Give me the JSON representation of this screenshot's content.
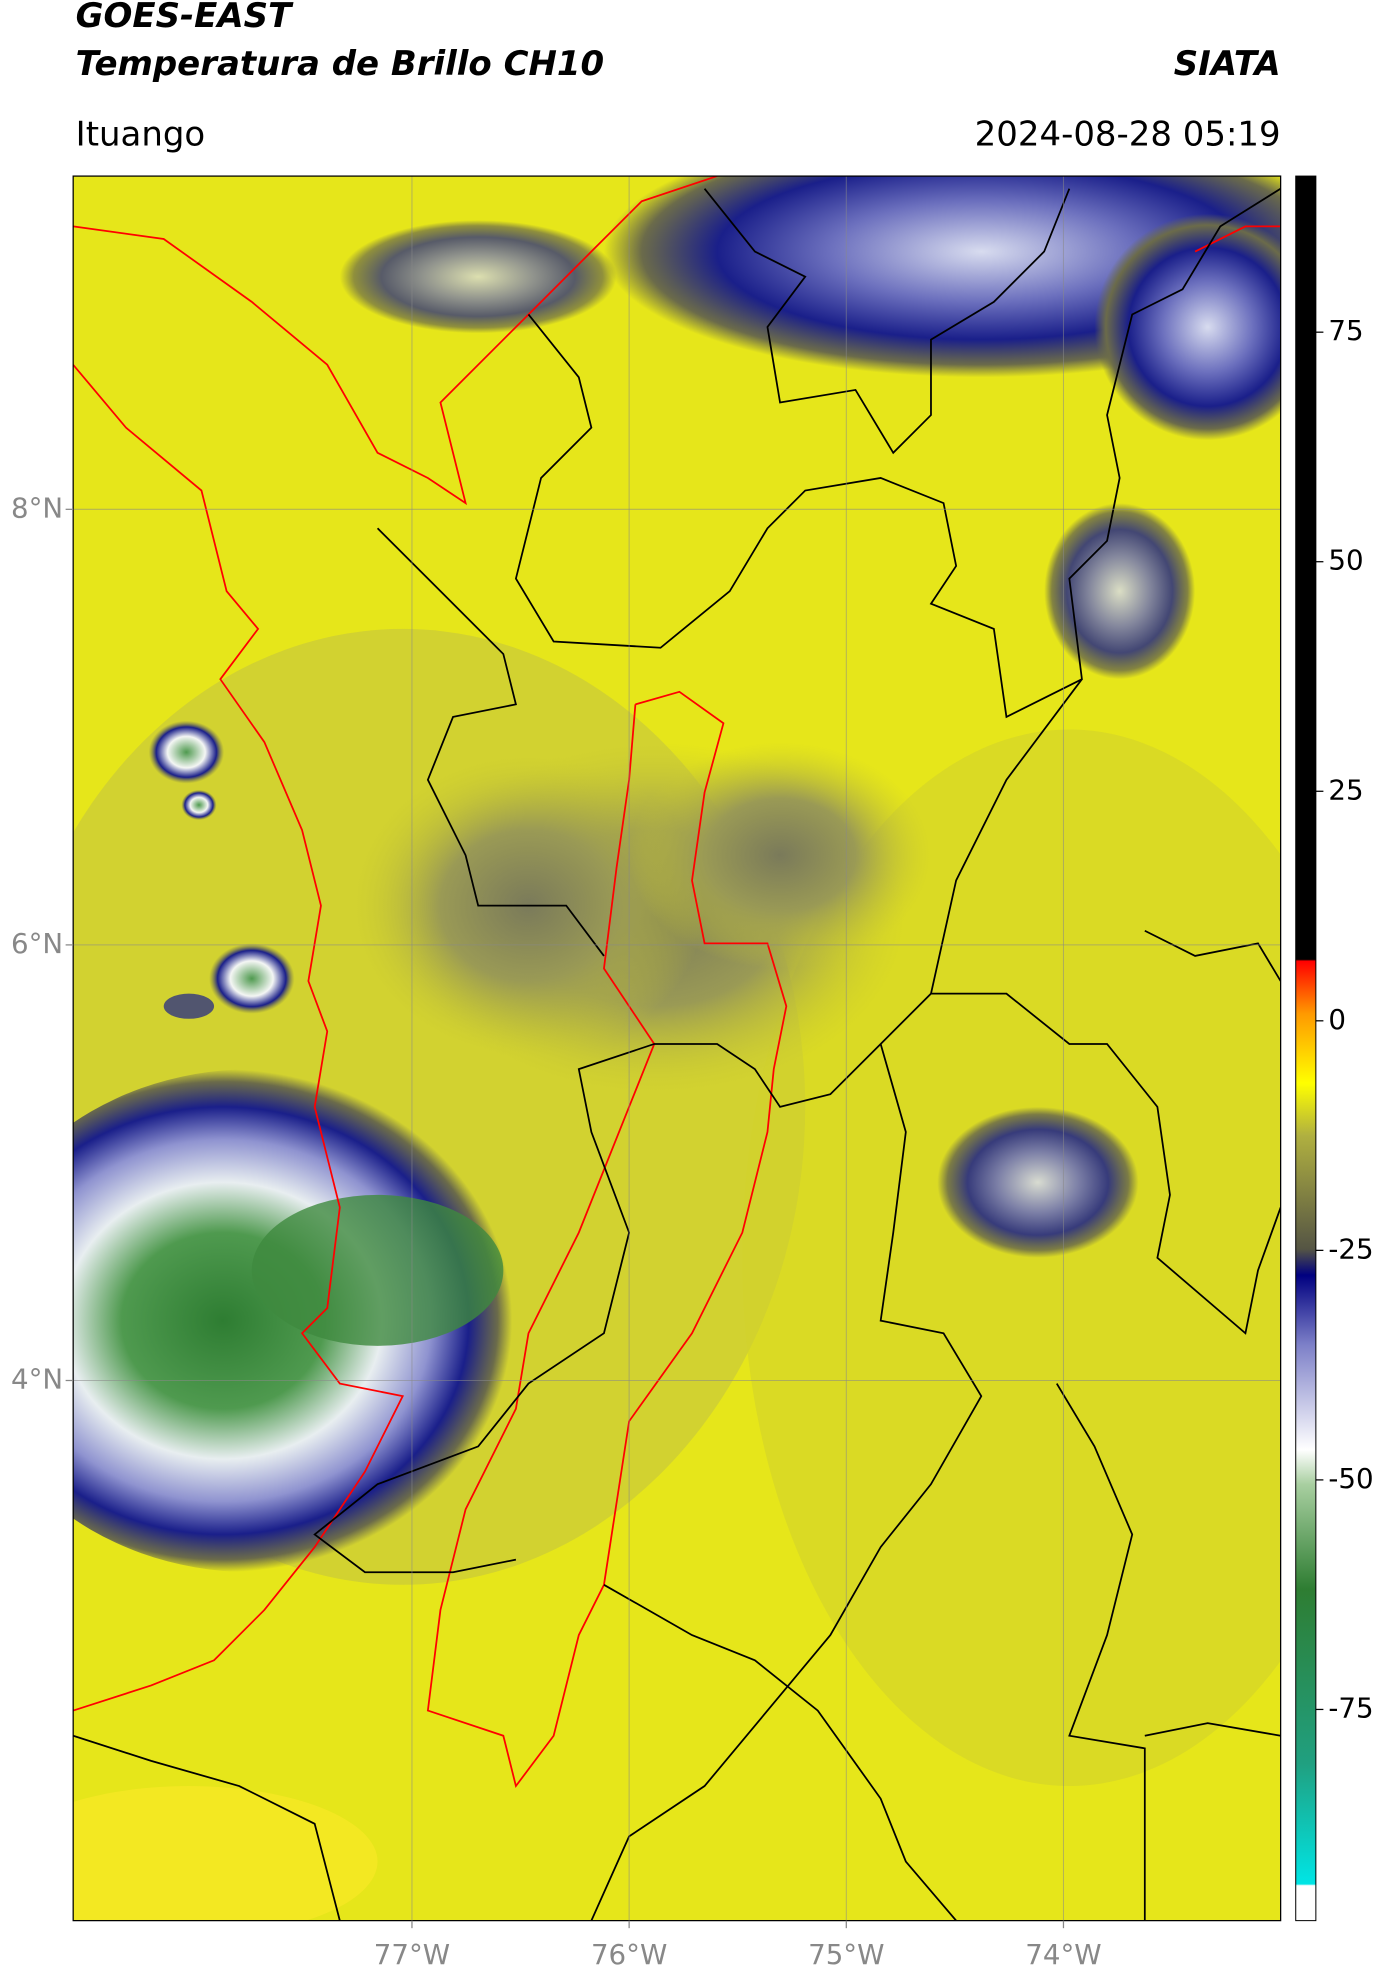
{
  "header": {
    "title": "GOES-EAST",
    "subtitle": "Temperatura de Brillo CH10",
    "brand": "SIATA",
    "location": "Ituango",
    "datetime": "2024-08-28 05:19"
  },
  "map": {
    "xlim": [
      -78.56,
      -73.0
    ],
    "ylim": [
      1.52,
      9.53
    ],
    "xticks": [
      {
        "value": -77,
        "label": "77°W"
      },
      {
        "value": -76,
        "label": "76°W"
      },
      {
        "value": -75,
        "label": "75°W"
      },
      {
        "value": -74,
        "label": "74°W"
      }
    ],
    "yticks": [
      {
        "value": 4,
        "label": "4°N"
      },
      {
        "value": 6,
        "label": "6°N"
      },
      {
        "value": 8,
        "label": "8°N"
      }
    ]
  },
  "colorbar": {
    "lim": [
      -98,
      92
    ],
    "ticks": [
      75,
      50,
      25,
      0,
      -25,
      -50,
      -75
    ]
  }
}
